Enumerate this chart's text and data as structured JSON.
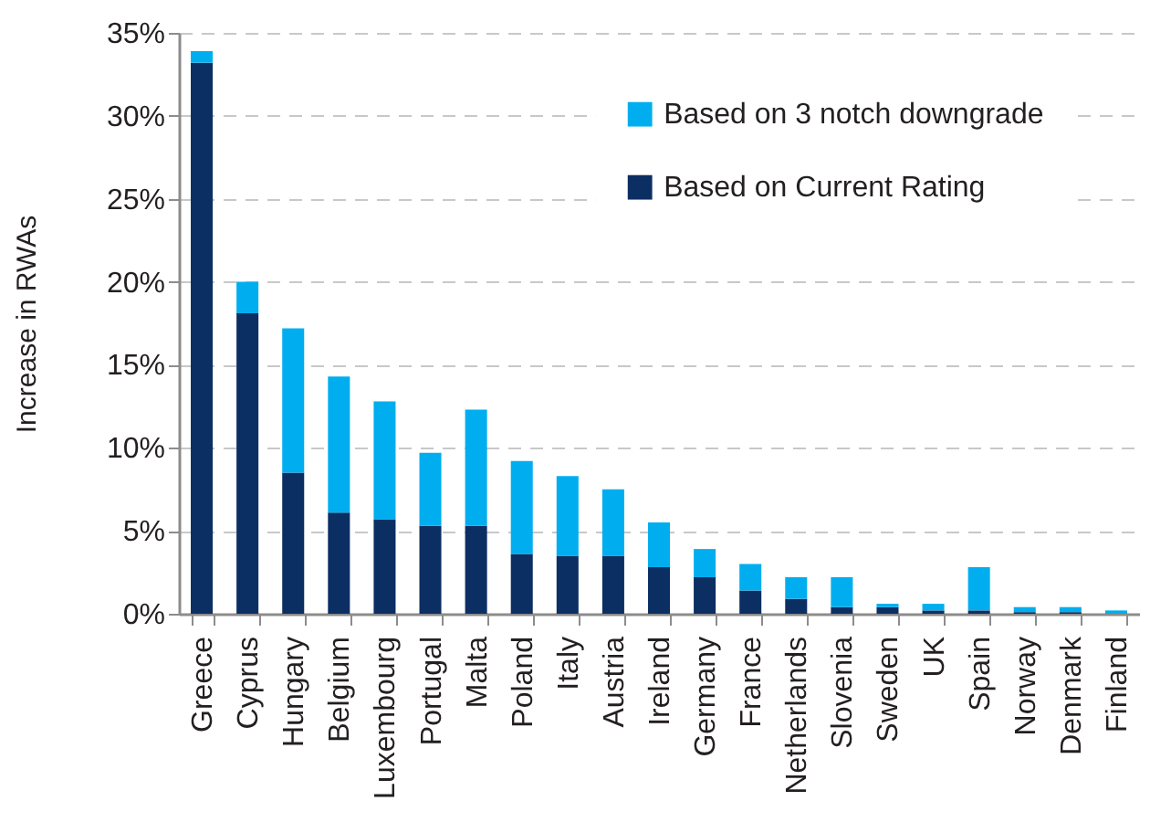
{
  "chart_data": {
    "type": "bar",
    "stacked": true,
    "ylabel": "Increase in RWAs",
    "categories": [
      "Greece",
      "Cyprus",
      "Hungary",
      "Belgium",
      "Luxembourg",
      "Portugal",
      "Malta",
      "Poland",
      "Italy",
      "Austria",
      "Ireland",
      "Germany",
      "France",
      "Netherlands",
      "Slovenia",
      "Sweden",
      "UK",
      "Spain",
      "Norway",
      "Denmark",
      "Finland"
    ],
    "series": [
      {
        "name": "Based on Current Rating",
        "color": "#0c2f63",
        "values": [
          33.2,
          18.1,
          8.5,
          6.1,
          5.7,
          5.3,
          5.3,
          3.6,
          3.5,
          3.5,
          2.8,
          2.2,
          1.4,
          0.9,
          0.4,
          0.4,
          0.2,
          0.2,
          0.1,
          0.1,
          0.0
        ]
      },
      {
        "name": "Based on 3 notch downgrade",
        "color": "#00aeef",
        "values": [
          0.7,
          1.9,
          8.7,
          8.2,
          7.1,
          4.4,
          7.0,
          5.6,
          4.8,
          4.0,
          2.7,
          1.7,
          1.6,
          1.3,
          1.8,
          0.2,
          0.4,
          2.6,
          0.3,
          0.3,
          0.2
        ]
      }
    ],
    "ylim": [
      0,
      35
    ],
    "yticks": [
      {
        "value": 0,
        "label": "0%"
      },
      {
        "value": 5,
        "label": "5%"
      },
      {
        "value": 10,
        "label": "10%"
      },
      {
        "value": 15,
        "label": "15%"
      },
      {
        "value": 20,
        "label": "20%"
      },
      {
        "value": 25,
        "label": "25%"
      },
      {
        "value": 30,
        "label": "30%"
      },
      {
        "value": 35,
        "label": "35%"
      }
    ],
    "grid": "y",
    "legend": "top right"
  }
}
